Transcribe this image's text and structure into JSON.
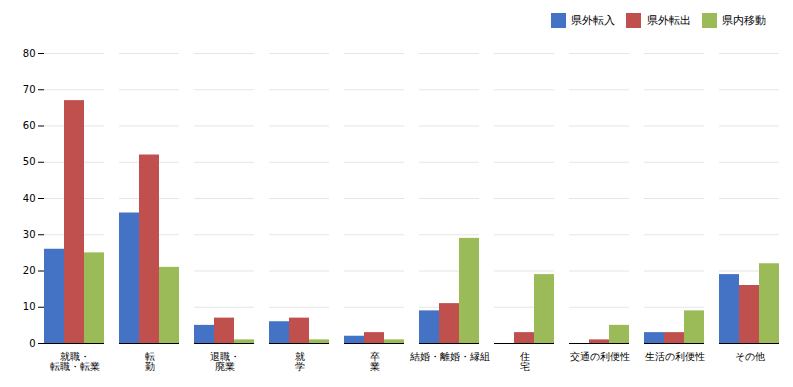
{
  "chart_data": {
    "type": "bar",
    "categories": [
      "就職・\n転職・転業",
      "転\n勤",
      "退職・\n廃業",
      "就\n学",
      "卒\n業",
      "結婚・離婚・縁組",
      "住\n宅",
      "交通の利便性",
      "生活の利便性",
      "その他"
    ],
    "series": [
      {
        "name": "県外転入",
        "color": "#4472C4",
        "values": [
          26,
          36,
          5,
          6,
          2,
          9,
          0,
          0,
          3,
          19
        ]
      },
      {
        "name": "県外転出",
        "color": "#C0504D",
        "values": [
          67,
          52,
          7,
          7,
          3,
          11,
          3,
          1,
          3,
          16
        ]
      },
      {
        "name": "県内移動",
        "color": "#9BBB59",
        "values": [
          25,
          21,
          1,
          1,
          1,
          29,
          19,
          5,
          9,
          22
        ]
      }
    ],
    "ylim": [
      0,
      80
    ],
    "yticks": [
      0,
      10,
      20,
      30,
      40,
      50,
      60,
      70,
      80
    ],
    "grid": true,
    "legend": "upper right"
  }
}
